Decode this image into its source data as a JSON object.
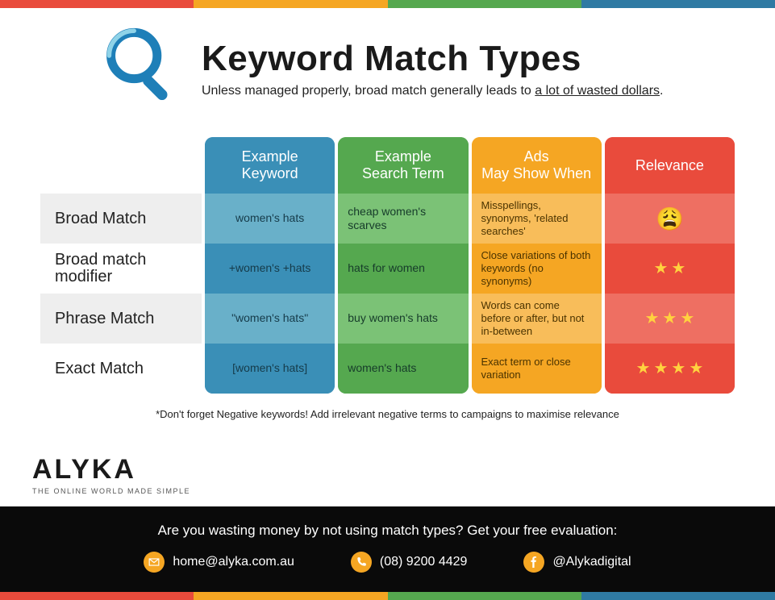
{
  "colors": {
    "blue": "#3a8fb7",
    "green": "#55a84f",
    "orange": "#f5a623",
    "red": "#e94b3c",
    "blue_light": "#69b0c9",
    "green_light": "#7bc276",
    "orange_light": "#f8bd5a",
    "red_light": "#ee6f62",
    "star": "#ffd23f",
    "top_red": "#e94b3c",
    "top_orange": "#f5a623",
    "top_green": "#55a84f",
    "top_blue": "#2f7aa3",
    "icon_blue": "#1e7fb8",
    "mail_icon": "#f5a623",
    "phone_icon": "#f5a623",
    "fb_icon": "#f5a623"
  },
  "header": {
    "title": "Keyword Match Types",
    "subtitle_pre": "Unless managed properly, broad match generally leads to ",
    "subtitle_underline": "a lot of wasted dollars",
    "subtitle_post": "."
  },
  "columns": [
    {
      "key": "keyword",
      "header": "Example Keyword",
      "bg": "#3a8fb7",
      "bg_light": "#69b0c9",
      "align": "center"
    },
    {
      "key": "search",
      "header": "Example Search Term",
      "bg": "#55a84f",
      "bg_light": "#7bc276",
      "align": "left"
    },
    {
      "key": "when",
      "header": "Ads May Show When",
      "bg": "#f5a623",
      "bg_light": "#f8bd5a",
      "align": "left"
    },
    {
      "key": "rel",
      "header": "Relevance",
      "bg": "#e94b3c",
      "bg_light": "#ee6f62",
      "align": "center"
    }
  ],
  "rows": [
    {
      "label": "Broad Match",
      "cells": {
        "keyword": "women's hats",
        "search": "cheap women's scarves",
        "when": "Misspellings, synonyms, 'related searches'",
        "rel_type": "emoji",
        "rel_emoji": "😩"
      }
    },
    {
      "label": "Broad match modifier",
      "cells": {
        "keyword": "+women's +hats",
        "search": "hats for women",
        "when": "Close variations of both keywords (no synonyms)",
        "rel_type": "stars",
        "rel_stars": 2
      }
    },
    {
      "label": "Phrase Match",
      "cells": {
        "keyword": "\"women's hats\"",
        "search": "buy women's hats",
        "when": "Words can come before or after, but not in-between",
        "rel_type": "stars",
        "rel_stars": 3
      }
    },
    {
      "label": "Exact Match",
      "cells": {
        "keyword": "[women's hats]",
        "search": "women's hats",
        "when": "Exact term or close variation",
        "rel_type": "stars",
        "rel_stars": 4
      }
    }
  ],
  "footnote": "*Don't forget Negative keywords! Add irrelevant negative terms to campaigns to maximise relevance",
  "logo": {
    "name": "ALYKA",
    "tag": "THE ONLINE WORLD MADE SIMPLE"
  },
  "footer": {
    "cta": "Are you wasting money by not using match types? Get your free evaluation:",
    "email": "home@alyka.com.au",
    "phone": "(08) 9200 4429",
    "social": "@Alykadigital"
  }
}
